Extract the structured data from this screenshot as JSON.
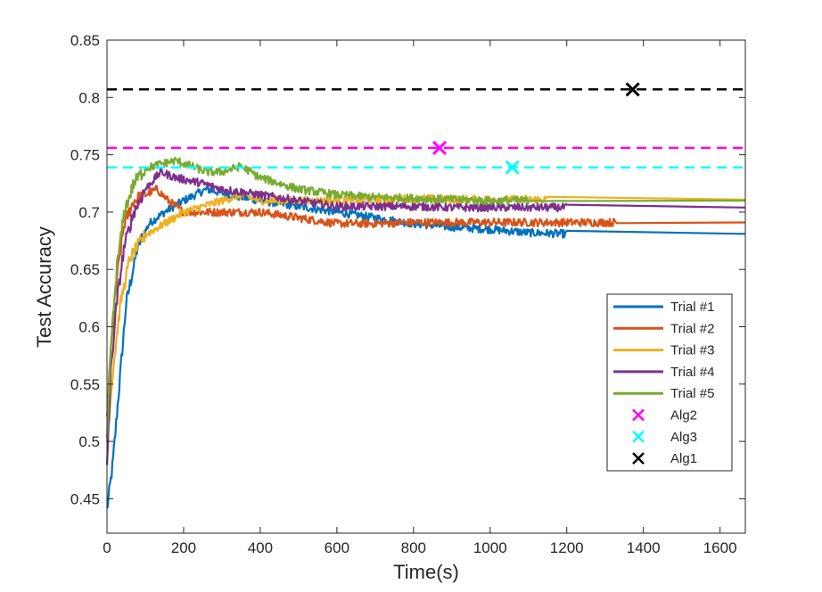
{
  "chart_data": {
    "type": "line",
    "title": "",
    "xlabel": "Time(s)",
    "ylabel": "Test Accuracy",
    "xlim": [
      0,
      1666
    ],
    "ylim": [
      0.42,
      0.85
    ],
    "xticks": [
      0,
      200,
      400,
      600,
      800,
      1000,
      1200,
      1400,
      1600
    ],
    "xtick_labels": [
      "0",
      "200",
      "400",
      "600",
      "800",
      "1000",
      "1200",
      "1400",
      "1600"
    ],
    "yticks": [
      0.45,
      0.5,
      0.55,
      0.6,
      0.65,
      0.7,
      0.75,
      0.8,
      0.85
    ],
    "ytick_labels": [
      "0.45",
      "0.5",
      "0.55",
      "0.6",
      "0.65",
      "0.7",
      "0.75",
      "0.8",
      "0.85"
    ],
    "legend_position": "bottom-right",
    "series": [
      {
        "name": "Trial #1",
        "color": "#0072BD",
        "x": [
          0,
          15,
          30,
          50,
          80,
          110,
          150,
          200,
          260,
          320,
          400,
          500,
          600,
          700,
          800,
          900,
          1000,
          1100,
          1200,
          1666
        ],
        "y": [
          0.44,
          0.48,
          0.54,
          0.62,
          0.67,
          0.69,
          0.7,
          0.71,
          0.72,
          0.715,
          0.71,
          0.705,
          0.7,
          0.695,
          0.69,
          0.687,
          0.685,
          0.682,
          0.681,
          0.681
        ]
      },
      {
        "name": "Trial #2",
        "color": "#D95319",
        "x": [
          0,
          10,
          25,
          45,
          70,
          100,
          130,
          160,
          200,
          300,
          400,
          500,
          600,
          700,
          800,
          900,
          1000,
          1100,
          1200,
          1330,
          1666
        ],
        "y": [
          0.52,
          0.58,
          0.64,
          0.69,
          0.71,
          0.715,
          0.72,
          0.71,
          0.7,
          0.7,
          0.7,
          0.695,
          0.69,
          0.69,
          0.691,
          0.691,
          0.691,
          0.691,
          0.691,
          0.691,
          0.691
        ]
      },
      {
        "name": "Trial #3",
        "color": "#EDB120",
        "x": [
          0,
          15,
          35,
          60,
          100,
          150,
          200,
          250,
          300,
          350,
          400,
          500,
          600,
          700,
          800,
          900,
          1000,
          1150,
          1666
        ],
        "y": [
          0.5,
          0.56,
          0.62,
          0.66,
          0.68,
          0.69,
          0.7,
          0.705,
          0.71,
          0.715,
          0.71,
          0.71,
          0.71,
          0.711,
          0.712,
          0.711,
          0.711,
          0.711,
          0.711
        ]
      },
      {
        "name": "Trial #4",
        "color": "#7E2F8E",
        "x": [
          0,
          10,
          25,
          45,
          70,
          100,
          140,
          180,
          250,
          300,
          400,
          500,
          600,
          700,
          800,
          900,
          1000,
          1100,
          1200,
          1666
        ],
        "y": [
          0.48,
          0.56,
          0.62,
          0.67,
          0.7,
          0.72,
          0.735,
          0.73,
          0.725,
          0.72,
          0.715,
          0.71,
          0.705,
          0.705,
          0.705,
          0.704,
          0.704,
          0.704,
          0.704,
          0.704
        ]
      },
      {
        "name": "Trial #5",
        "color": "#77AC30",
        "x": [
          0,
          10,
          25,
          45,
          70,
          100,
          140,
          180,
          220,
          260,
          300,
          350,
          400,
          500,
          600,
          700,
          800,
          900,
          1000,
          1100,
          1666
        ],
        "y": [
          0.5,
          0.58,
          0.65,
          0.7,
          0.725,
          0.738,
          0.742,
          0.745,
          0.74,
          0.735,
          0.735,
          0.74,
          0.73,
          0.72,
          0.715,
          0.713,
          0.712,
          0.711,
          0.71,
          0.71,
          0.71
        ]
      }
    ],
    "reference_lines": [
      {
        "name": "Alg2",
        "y": 0.756,
        "color": "#FF00FF"
      },
      {
        "name": "Alg3",
        "y": 0.739,
        "color": "#00FFFF"
      },
      {
        "name": "Alg1",
        "y": 0.807,
        "color": "#000000"
      }
    ],
    "markers": [
      {
        "name": "Alg2",
        "x": 868,
        "y": 0.756,
        "color": "#FF00FF",
        "symbol": "x"
      },
      {
        "name": "Alg3",
        "x": 1058,
        "y": 0.739,
        "color": "#00FFFF",
        "symbol": "x"
      },
      {
        "name": "Alg1",
        "x": 1372,
        "y": 0.807,
        "color": "#000000",
        "symbol": "x"
      }
    ],
    "legend": [
      "Trial #1",
      "Trial #2",
      "Trial #3",
      "Trial #4",
      "Trial #5",
      "Alg2",
      "Alg3",
      "Alg1"
    ]
  }
}
